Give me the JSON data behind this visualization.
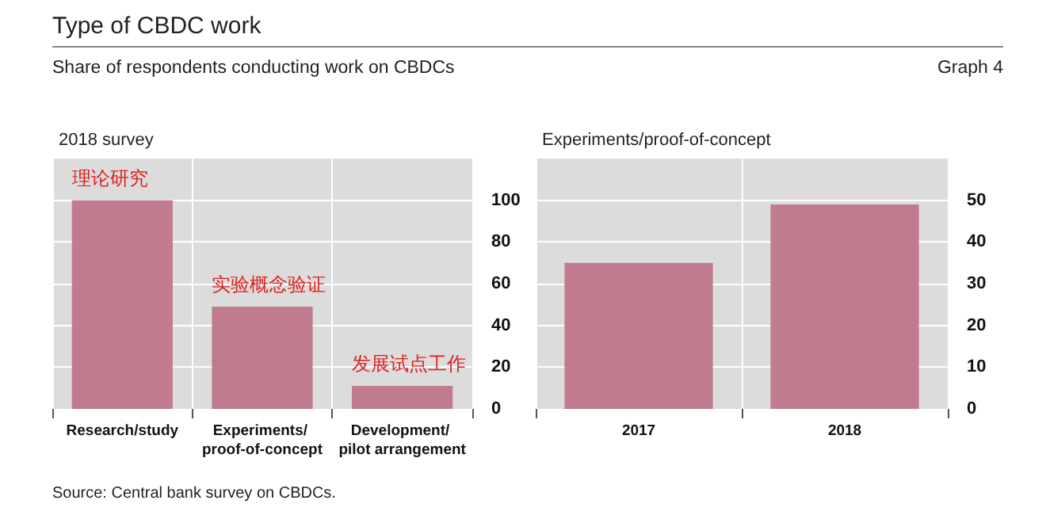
{
  "chart_data": [
    {
      "type": "other",
      "title": "Type of CBDC work",
      "subtitle": "Share of respondents conducting work on CBDCs",
      "annotations": [
        "Graph 4",
        "Source: Central bank survey on CBDCs."
      ]
    },
    {
      "type": "bar",
      "title": "2018 survey",
      "categories": [
        "Research/study",
        "Experiments/ proof-of-concept",
        "Development/ pilot arrangement"
      ],
      "values": [
        100,
        49,
        11
      ],
      "color": "#c07b8e",
      "ylim": [
        0,
        120
      ],
      "yticks": [
        0,
        20,
        40,
        60,
        80,
        100
      ],
      "grid": true,
      "annotations": [
        "理论研究",
        "实验概念验证",
        "发展试点工作"
      ]
    },
    {
      "type": "bar",
      "title": "Experiments/proof-of-concept",
      "categories": [
        "2017",
        "2018"
      ],
      "values": [
        35,
        49
      ],
      "color": "#c07b8e",
      "ylim": [
        0,
        60
      ],
      "yticks": [
        0,
        10,
        20,
        30,
        40,
        50
      ],
      "grid": true
    }
  ]
}
